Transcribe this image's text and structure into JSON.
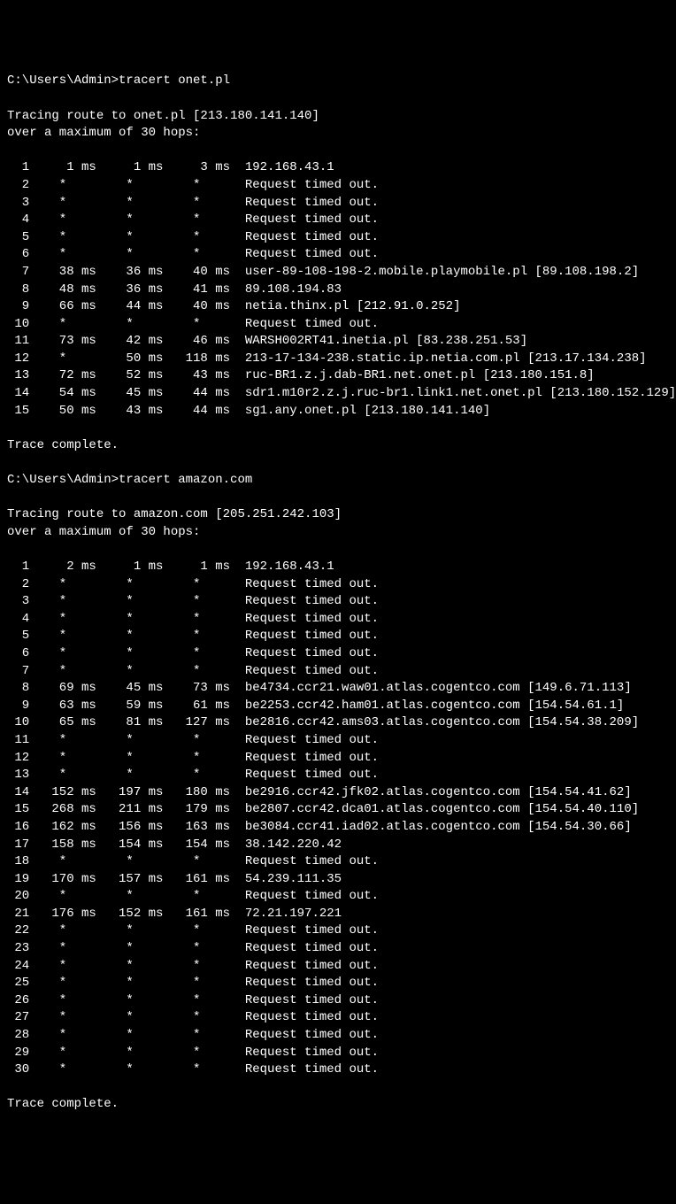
{
  "prompt_prefix": "C:\\Users\\Admin>",
  "traces": [
    {
      "command": "tracert onet.pl",
      "header_line1": "Tracing route to onet.pl [213.180.141.140]",
      "header_line2": "over a maximum of 30 hops:",
      "hops": [
        {
          "n": 1,
          "t1": "1 ms",
          "t2": "1 ms",
          "t3": "3 ms",
          "dest": "192.168.43.1"
        },
        {
          "n": 2,
          "t1": "*",
          "t2": "*",
          "t3": "*",
          "dest": "Request timed out."
        },
        {
          "n": 3,
          "t1": "*",
          "t2": "*",
          "t3": "*",
          "dest": "Request timed out."
        },
        {
          "n": 4,
          "t1": "*",
          "t2": "*",
          "t3": "*",
          "dest": "Request timed out."
        },
        {
          "n": 5,
          "t1": "*",
          "t2": "*",
          "t3": "*",
          "dest": "Request timed out."
        },
        {
          "n": 6,
          "t1": "*",
          "t2": "*",
          "t3": "*",
          "dest": "Request timed out."
        },
        {
          "n": 7,
          "t1": "38 ms",
          "t2": "36 ms",
          "t3": "40 ms",
          "dest": "user-89-108-198-2.mobile.playmobile.pl [89.108.198.2]"
        },
        {
          "n": 8,
          "t1": "48 ms",
          "t2": "36 ms",
          "t3": "41 ms",
          "dest": "89.108.194.83"
        },
        {
          "n": 9,
          "t1": "66 ms",
          "t2": "44 ms",
          "t3": "40 ms",
          "dest": "netia.thinx.pl [212.91.0.252]"
        },
        {
          "n": 10,
          "t1": "*",
          "t2": "*",
          "t3": "*",
          "dest": "Request timed out."
        },
        {
          "n": 11,
          "t1": "73 ms",
          "t2": "42 ms",
          "t3": "46 ms",
          "dest": "WARSH002RT41.inetia.pl [83.238.251.53]"
        },
        {
          "n": 12,
          "t1": "*",
          "t2": "50 ms",
          "t3": "118 ms",
          "dest": "213-17-134-238.static.ip.netia.com.pl [213.17.134.238]"
        },
        {
          "n": 13,
          "t1": "72 ms",
          "t2": "52 ms",
          "t3": "43 ms",
          "dest": "ruc-BR1.z.j.dab-BR1.net.onet.pl [213.180.151.8]"
        },
        {
          "n": 14,
          "t1": "54 ms",
          "t2": "45 ms",
          "t3": "44 ms",
          "dest": "sdr1.m10r2.z.j.ruc-br1.link1.net.onet.pl [213.180.152.129]"
        },
        {
          "n": 15,
          "t1": "50 ms",
          "t2": "43 ms",
          "t3": "44 ms",
          "dest": "sg1.any.onet.pl [213.180.141.140]"
        }
      ],
      "footer": "Trace complete."
    },
    {
      "command": "tracert amazon.com",
      "header_line1": "Tracing route to amazon.com [205.251.242.103]",
      "header_line2": "over a maximum of 30 hops:",
      "hops": [
        {
          "n": 1,
          "t1": "2 ms",
          "t2": "1 ms",
          "t3": "1 ms",
          "dest": "192.168.43.1"
        },
        {
          "n": 2,
          "t1": "*",
          "t2": "*",
          "t3": "*",
          "dest": "Request timed out."
        },
        {
          "n": 3,
          "t1": "*",
          "t2": "*",
          "t3": "*",
          "dest": "Request timed out."
        },
        {
          "n": 4,
          "t1": "*",
          "t2": "*",
          "t3": "*",
          "dest": "Request timed out."
        },
        {
          "n": 5,
          "t1": "*",
          "t2": "*",
          "t3": "*",
          "dest": "Request timed out."
        },
        {
          "n": 6,
          "t1": "*",
          "t2": "*",
          "t3": "*",
          "dest": "Request timed out."
        },
        {
          "n": 7,
          "t1": "*",
          "t2": "*",
          "t3": "*",
          "dest": "Request timed out."
        },
        {
          "n": 8,
          "t1": "69 ms",
          "t2": "45 ms",
          "t3": "73 ms",
          "dest": "be4734.ccr21.waw01.atlas.cogentco.com [149.6.71.113]"
        },
        {
          "n": 9,
          "t1": "63 ms",
          "t2": "59 ms",
          "t3": "61 ms",
          "dest": "be2253.ccr42.ham01.atlas.cogentco.com [154.54.61.1]"
        },
        {
          "n": 10,
          "t1": "65 ms",
          "t2": "81 ms",
          "t3": "127 ms",
          "dest": "be2816.ccr42.ams03.atlas.cogentco.com [154.54.38.209]"
        },
        {
          "n": 11,
          "t1": "*",
          "t2": "*",
          "t3": "*",
          "dest": "Request timed out."
        },
        {
          "n": 12,
          "t1": "*",
          "t2": "*",
          "t3": "*",
          "dest": "Request timed out."
        },
        {
          "n": 13,
          "t1": "*",
          "t2": "*",
          "t3": "*",
          "dest": "Request timed out."
        },
        {
          "n": 14,
          "t1": "152 ms",
          "t2": "197 ms",
          "t3": "180 ms",
          "dest": "be2916.ccr42.jfk02.atlas.cogentco.com [154.54.41.62]"
        },
        {
          "n": 15,
          "t1": "268 ms",
          "t2": "211 ms",
          "t3": "179 ms",
          "dest": "be2807.ccr42.dca01.atlas.cogentco.com [154.54.40.110]"
        },
        {
          "n": 16,
          "t1": "162 ms",
          "t2": "156 ms",
          "t3": "163 ms",
          "dest": "be3084.ccr41.iad02.atlas.cogentco.com [154.54.30.66]"
        },
        {
          "n": 17,
          "t1": "158 ms",
          "t2": "154 ms",
          "t3": "154 ms",
          "dest": "38.142.220.42"
        },
        {
          "n": 18,
          "t1": "*",
          "t2": "*",
          "t3": "*",
          "dest": "Request timed out."
        },
        {
          "n": 19,
          "t1": "170 ms",
          "t2": "157 ms",
          "t3": "161 ms",
          "dest": "54.239.111.35"
        },
        {
          "n": 20,
          "t1": "*",
          "t2": "*",
          "t3": "*",
          "dest": "Request timed out."
        },
        {
          "n": 21,
          "t1": "176 ms",
          "t2": "152 ms",
          "t3": "161 ms",
          "dest": "72.21.197.221"
        },
        {
          "n": 22,
          "t1": "*",
          "t2": "*",
          "t3": "*",
          "dest": "Request timed out."
        },
        {
          "n": 23,
          "t1": "*",
          "t2": "*",
          "t3": "*",
          "dest": "Request timed out."
        },
        {
          "n": 24,
          "t1": "*",
          "t2": "*",
          "t3": "*",
          "dest": "Request timed out."
        },
        {
          "n": 25,
          "t1": "*",
          "t2": "*",
          "t3": "*",
          "dest": "Request timed out."
        },
        {
          "n": 26,
          "t1": "*",
          "t2": "*",
          "t3": "*",
          "dest": "Request timed out."
        },
        {
          "n": 27,
          "t1": "*",
          "t2": "*",
          "t3": "*",
          "dest": "Request timed out."
        },
        {
          "n": 28,
          "t1": "*",
          "t2": "*",
          "t3": "*",
          "dest": "Request timed out."
        },
        {
          "n": 29,
          "t1": "*",
          "t2": "*",
          "t3": "*",
          "dest": "Request timed out."
        },
        {
          "n": 30,
          "t1": "*",
          "t2": "*",
          "t3": "*",
          "dest": "Request timed out."
        }
      ],
      "footer": "Trace complete."
    }
  ],
  "column_widths": {
    "hop": 3,
    "timing": 9
  }
}
